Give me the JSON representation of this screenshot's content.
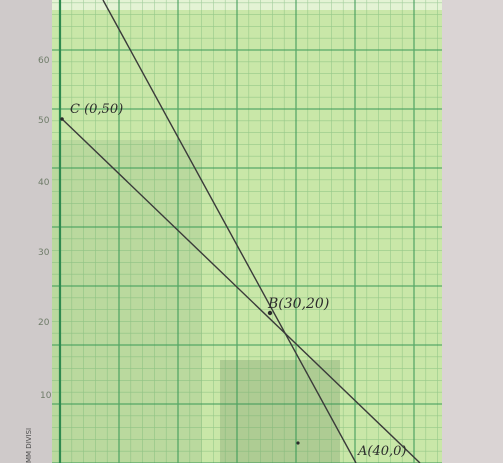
{
  "photo": {
    "subject": "Graph paper with a hand-drawn coordinate sketch",
    "colors": {
      "background": "#dcd6d6",
      "paper": "#c8e6a6",
      "grid": "#5fa869",
      "ink": "#2c2c2c"
    },
    "y_axis_ticks": [
      "60",
      "50",
      "40",
      "30",
      "20",
      "10"
    ],
    "points": [
      {
        "label": "C (0,50)"
      },
      {
        "label": "B(30,20)"
      },
      {
        "label": "A(40,0)"
      }
    ],
    "edge_text": "MM DIVISI"
  }
}
